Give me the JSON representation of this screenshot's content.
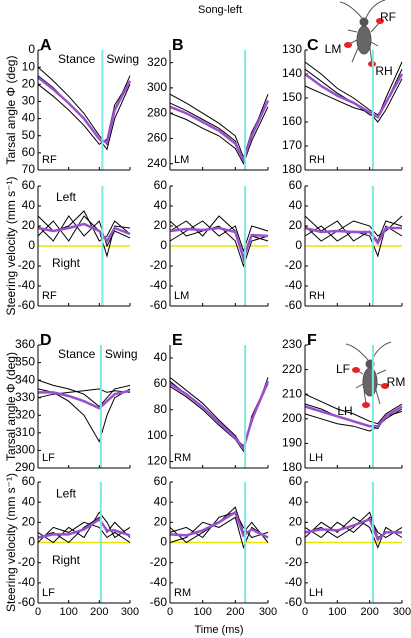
{
  "title": "Song-left",
  "x_label": "Time (ms)",
  "chart_data": [
    {
      "type": "line",
      "letter": "A",
      "leg": "RF",
      "ylabel": "Tarsal angle Φ (deg)",
      "annotations": [
        "Stance",
        "Swing"
      ],
      "x": [
        0,
        50,
        100,
        150,
        200,
        225,
        250,
        300
      ],
      "xlim": [
        0,
        300
      ],
      "xticks": [
        0,
        100,
        200,
        300
      ],
      "ylim": [
        70,
        0
      ],
      "yticks": [
        0,
        10,
        20,
        30,
        40,
        50,
        60,
        70
      ],
      "marker_x": 210,
      "marker_color": "#80e8e0",
      "series": [
        {
          "color": "#000000",
          "values": [
            10,
            18,
            27,
            37,
            50,
            55,
            35,
            15
          ]
        },
        {
          "color": "#000000",
          "values": [
            20,
            27,
            35,
            44,
            55,
            52,
            32,
            18
          ]
        },
        {
          "color": "#000000",
          "values": [
            15,
            22,
            31,
            40,
            52,
            58,
            40,
            20
          ]
        },
        {
          "color": "#9a4fd0",
          "values": [
            16,
            23,
            31,
            40,
            52,
            54,
            35,
            18
          ]
        }
      ]
    },
    {
      "type": "line",
      "letter": "B",
      "leg": "LM",
      "x": [
        0,
        50,
        100,
        150,
        200,
        225,
        250,
        300
      ],
      "xlim": [
        0,
        300
      ],
      "xticks": [
        0,
        100,
        200,
        300
      ],
      "ylim": [
        235,
        330
      ],
      "yticks": [
        240,
        260,
        280,
        300,
        320
      ],
      "marker_x": 230,
      "marker_color": "#80e8e0",
      "series": [
        {
          "color": "#000000",
          "values": [
            295,
            288,
            280,
            272,
            262,
            245,
            265,
            290
          ]
        },
        {
          "color": "#000000",
          "values": [
            280,
            275,
            268,
            262,
            252,
            240,
            258,
            285
          ]
        },
        {
          "color": "#000000",
          "values": [
            288,
            282,
            275,
            268,
            258,
            242,
            262,
            295
          ]
        },
        {
          "color": "#9a4fd0",
          "values": [
            285,
            280,
            273,
            266,
            256,
            243,
            262,
            290
          ]
        }
      ]
    },
    {
      "type": "line",
      "letter": "C",
      "leg": "RH",
      "inset_labels": [
        "RF",
        "LM",
        "RH"
      ],
      "x": [
        0,
        50,
        100,
        150,
        200,
        225,
        250,
        300
      ],
      "xlim": [
        0,
        300
      ],
      "xticks": [
        0,
        100,
        200,
        300
      ],
      "ylim": [
        180,
        130
      ],
      "yticks": [
        130,
        140,
        150,
        160,
        170,
        180
      ],
      "marker_x": 210,
      "marker_color": "#80e8e0",
      "series": [
        {
          "color": "#000000",
          "values": [
            138,
            143,
            148,
            152,
            157,
            158,
            150,
            135
          ]
        },
        {
          "color": "#000000",
          "values": [
            145,
            148,
            151,
            154,
            156,
            160,
            155,
            142
          ]
        },
        {
          "color": "#000000",
          "values": [
            135,
            140,
            146,
            150,
            155,
            157,
            152,
            138
          ]
        },
        {
          "color": "#9a4fd0",
          "values": [
            140,
            145,
            149,
            152,
            156,
            158,
            152,
            140
          ]
        }
      ]
    },
    {
      "type": "line",
      "leg": "RF",
      "ylabel": "Steering velocity (mm s⁻¹)",
      "annotations": [
        "Left",
        "Right"
      ],
      "x": [
        0,
        50,
        100,
        150,
        200,
        225,
        250,
        300
      ],
      "xlim": [
        0,
        300
      ],
      "xticks": [
        0,
        100,
        200,
        300
      ],
      "ylim": [
        -60,
        60
      ],
      "yticks": [
        -60,
        -40,
        -20,
        0,
        20,
        40,
        60
      ],
      "marker_x": 210,
      "marker_color": "#80e8e0",
      "hline": 0,
      "hline_color": "#e6e600",
      "series": [
        {
          "color": "#000000",
          "values": [
            10,
            25,
            5,
            30,
            15,
            -10,
            20,
            18
          ]
        },
        {
          "color": "#000000",
          "values": [
            20,
            5,
            30,
            10,
            25,
            0,
            15,
            8
          ]
        },
        {
          "color": "#000000",
          "values": [
            30,
            15,
            20,
            35,
            5,
            10,
            25,
            12
          ]
        },
        {
          "color": "#9a4fd0",
          "values": [
            18,
            15,
            18,
            22,
            15,
            5,
            18,
            12
          ]
        }
      ]
    },
    {
      "type": "line",
      "leg": "LM",
      "x": [
        0,
        50,
        100,
        150,
        200,
        225,
        250,
        300
      ],
      "xlim": [
        0,
        300
      ],
      "xticks": [
        0,
        100,
        200,
        300
      ],
      "ylim": [
        -60,
        60
      ],
      "yticks": [
        -60,
        -40,
        -20,
        0,
        20,
        40,
        60
      ],
      "marker_x": 230,
      "marker_color": "#80e8e0",
      "hline": 0,
      "hline_color": "#e6e600",
      "series": [
        {
          "color": "#000000",
          "values": [
            15,
            25,
            10,
            30,
            15,
            -15,
            10,
            5
          ]
        },
        {
          "color": "#000000",
          "values": [
            5,
            15,
            25,
            10,
            20,
            -5,
            20,
            15
          ]
        },
        {
          "color": "#000000",
          "values": [
            25,
            10,
            15,
            20,
            5,
            -20,
            5,
            10
          ]
        },
        {
          "color": "#9a4fd0",
          "values": [
            15,
            17,
            16,
            18,
            14,
            -12,
            11,
            10
          ]
        }
      ]
    },
    {
      "type": "line",
      "leg": "RH",
      "x": [
        0,
        50,
        100,
        150,
        200,
        225,
        250,
        300
      ],
      "xlim": [
        0,
        300
      ],
      "xticks": [
        0,
        100,
        200,
        300
      ],
      "ylim": [
        -60,
        60
      ],
      "yticks": [
        -60,
        -40,
        -20,
        0,
        20,
        40,
        60
      ],
      "marker_x": 210,
      "marker_color": "#80e8e0",
      "hline": 0,
      "hline_color": "#e6e600",
      "series": [
        {
          "color": "#000000",
          "values": [
            20,
            5,
            15,
            25,
            20,
            10,
            15,
            30
          ]
        },
        {
          "color": "#000000",
          "values": [
            10,
            20,
            5,
            15,
            10,
            -10,
            20,
            10
          ]
        },
        {
          "color": "#000000",
          "values": [
            30,
            15,
            25,
            5,
            15,
            5,
            25,
            20
          ]
        },
        {
          "color": "#9a4fd0",
          "values": [
            18,
            14,
            15,
            14,
            14,
            3,
            18,
            18
          ]
        }
      ]
    },
    {
      "type": "line",
      "letter": "D",
      "leg": "LF",
      "ylabel": "Tarsal angle Φ (deg)",
      "annotations": [
        "Stance",
        "Swing"
      ],
      "x": [
        0,
        50,
        100,
        150,
        200,
        225,
        250,
        300
      ],
      "xlim": [
        0,
        300
      ],
      "xticks": [
        0,
        100,
        200,
        300
      ],
      "ylim": [
        290,
        360
      ],
      "yticks": [
        290,
        300,
        310,
        320,
        330,
        340,
        350,
        360
      ],
      "marker_x": 205,
      "marker_color": "#80e8e0",
      "series": [
        {
          "color": "#000000",
          "values": [
            340,
            337,
            335,
            332,
            325,
            330,
            335,
            337
          ]
        },
        {
          "color": "#000000",
          "values": [
            335,
            333,
            328,
            320,
            305,
            320,
            330,
            335
          ]
        },
        {
          "color": "#000000",
          "values": [
            330,
            332,
            333,
            334,
            335,
            333,
            334,
            333
          ]
        },
        {
          "color": "#9a4fd0",
          "values": [
            333,
            333,
            331,
            328,
            324,
            328,
            332,
            334
          ]
        }
      ]
    },
    {
      "type": "line",
      "letter": "E",
      "leg": "RM",
      "x": [
        0,
        50,
        100,
        150,
        200,
        225,
        250,
        300
      ],
      "xlim": [
        0,
        300
      ],
      "xticks": [
        0,
        100,
        200,
        300
      ],
      "ylim": [
        125,
        30
      ],
      "yticks": [
        40,
        60,
        80,
        100,
        120
      ],
      "marker_x": 230,
      "marker_color": "#80e8e0",
      "series": [
        {
          "color": "#000000",
          "values": [
            55,
            65,
            75,
            88,
            100,
            110,
            90,
            55
          ]
        },
        {
          "color": "#000000",
          "values": [
            62,
            70,
            80,
            92,
            103,
            112,
            85,
            58
          ]
        },
        {
          "color": "#000000",
          "values": [
            58,
            68,
            78,
            90,
            102,
            108,
            88,
            60
          ]
        },
        {
          "color": "#9a4fd0",
          "values": [
            60,
            68,
            78,
            90,
            102,
            110,
            88,
            58
          ]
        }
      ]
    },
    {
      "type": "line",
      "letter": "F",
      "leg": "LH",
      "inset_labels": [
        "LF",
        "RM",
        "LH"
      ],
      "x": [
        0,
        50,
        100,
        150,
        200,
        225,
        250,
        300
      ],
      "xlim": [
        0,
        300
      ],
      "xticks": [
        0,
        100,
        200,
        300
      ],
      "ylim": [
        180,
        230
      ],
      "yticks": [
        180,
        190,
        200,
        210,
        220,
        230
      ],
      "marker_x": 210,
      "marker_color": "#80e8e0",
      "series": [
        {
          "color": "#000000",
          "values": [
            210,
            207,
            204,
            202,
            199,
            198,
            202,
            206
          ]
        },
        {
          "color": "#000000",
          "values": [
            202,
            200,
            198,
            197,
            195,
            197,
            200,
            204
          ]
        },
        {
          "color": "#000000",
          "values": [
            206,
            204,
            201,
            199,
            197,
            196,
            201,
            203
          ]
        },
        {
          "color": "#9a4fd0",
          "values": [
            205,
            203,
            201,
            199,
            197,
            197,
            201,
            205
          ]
        }
      ]
    },
    {
      "type": "line",
      "leg": "LF",
      "ylabel": "Steering velocity (mm s⁻¹)",
      "annotations": [
        "Left",
        "Right"
      ],
      "x": [
        0,
        50,
        100,
        150,
        200,
        225,
        250,
        300
      ],
      "xlim": [
        0,
        300
      ],
      "xticks": [
        0,
        100,
        200,
        300
      ],
      "xtick_labels": true,
      "ylim": [
        -60,
        60
      ],
      "yticks": [
        -60,
        -40,
        -20,
        0,
        20,
        40,
        60
      ],
      "marker_x": 205,
      "marker_color": "#80e8e0",
      "hline": 0,
      "hline_color": "#e6e600",
      "series": [
        {
          "color": "#000000",
          "values": [
            5,
            10,
            0,
            15,
            25,
            10,
            20,
            5
          ]
        },
        {
          "color": "#000000",
          "values": [
            10,
            0,
            15,
            5,
            30,
            20,
            5,
            15
          ]
        },
        {
          "color": "#000000",
          "values": [
            0,
            15,
            10,
            20,
            15,
            5,
            10,
            0
          ]
        },
        {
          "color": "#9a4fd0",
          "values": [
            5,
            8,
            8,
            13,
            23,
            12,
            12,
            7
          ]
        }
      ]
    },
    {
      "type": "line",
      "leg": "RM",
      "x": [
        0,
        50,
        100,
        150,
        200,
        225,
        250,
        300
      ],
      "xlim": [
        0,
        300
      ],
      "xticks": [
        0,
        100,
        200,
        300
      ],
      "xtick_labels": true,
      "ylim": [
        -60,
        60
      ],
      "yticks": [
        -60,
        -40,
        -20,
        0,
        20,
        40,
        60
      ],
      "marker_x": 230,
      "marker_color": "#80e8e0",
      "hline": 0,
      "hline_color": "#e6e600",
      "series": [
        {
          "color": "#000000",
          "values": [
            10,
            15,
            5,
            25,
            30,
            15,
            5,
            10
          ]
        },
        {
          "color": "#000000",
          "values": [
            0,
            5,
            20,
            15,
            25,
            -5,
            15,
            5
          ]
        },
        {
          "color": "#000000",
          "values": [
            15,
            0,
            10,
            20,
            35,
            10,
            20,
            0
          ]
        },
        {
          "color": "#9a4fd0",
          "values": [
            8,
            7,
            12,
            20,
            30,
            7,
            13,
            5
          ]
        }
      ]
    },
    {
      "type": "line",
      "leg": "LH",
      "x": [
        0,
        50,
        100,
        150,
        200,
        225,
        250,
        300
      ],
      "xlim": [
        0,
        300
      ],
      "xticks": [
        0,
        100,
        200,
        300
      ],
      "xtick_labels": true,
      "ylim": [
        -60,
        60
      ],
      "yticks": [
        -60,
        -40,
        -20,
        0,
        20,
        40,
        60
      ],
      "marker_x": 210,
      "marker_color": "#80e8e0",
      "hline": 0,
      "hline_color": "#e6e600",
      "series": [
        {
          "color": "#000000",
          "values": [
            15,
            5,
            20,
            10,
            25,
            10,
            5,
            15
          ]
        },
        {
          "color": "#000000",
          "values": [
            5,
            20,
            10,
            25,
            15,
            -5,
            15,
            5
          ]
        },
        {
          "color": "#000000",
          "values": [
            10,
            15,
            5,
            15,
            30,
            5,
            10,
            10
          ]
        },
        {
          "color": "#9a4fd0",
          "values": [
            10,
            13,
            12,
            17,
            23,
            3,
            10,
            10
          ]
        }
      ]
    }
  ]
}
